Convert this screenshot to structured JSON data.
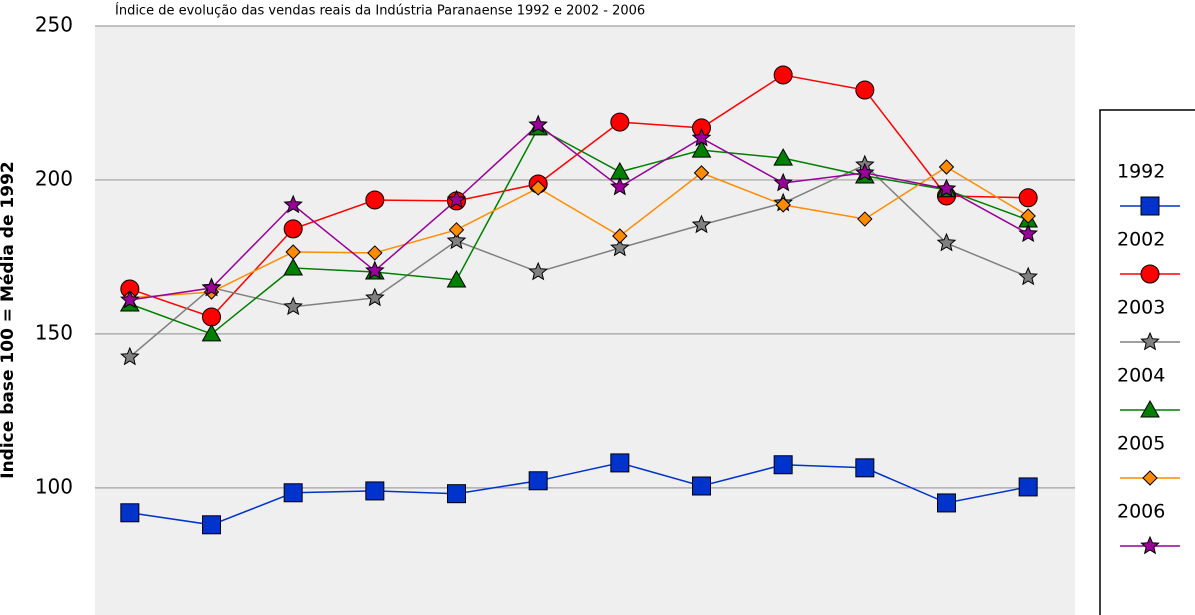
{
  "chart_data": {
    "type": "line",
    "title": "Índice de evolução das vendas reais da Indústria Paranaense 1992 e 2002 - 2006",
    "y_label": "Índice base 100 = Média de 1992",
    "categories": [
      null,
      null,
      null,
      null,
      null,
      null,
      null,
      null,
      null,
      null,
      null,
      null
    ],
    "ylim": [
      60,
      250
    ],
    "yticks": [
      100,
      150,
      200,
      250
    ],
    "grid": true,
    "legend": "right",
    "series": [
      {
        "name": "1992",
        "color": "#0033cc",
        "marker": "square",
        "values": [
          91.9,
          88.0,
          98.4,
          99.0,
          98.1,
          102.3,
          108.1,
          100.6,
          107.5,
          106.5,
          95.1,
          100.3
        ]
      },
      {
        "name": "2002",
        "color": "#ff0000",
        "marker": "circle",
        "values": [
          164.6,
          155.5,
          184.1,
          193.5,
          193.2,
          198.7,
          218.8,
          216.9,
          234.1,
          229.2,
          194.8,
          194.2
        ]
      },
      {
        "name": "2003",
        "color": "#808080",
        "marker": "star",
        "values": [
          142.5,
          165.0,
          158.8,
          161.7,
          180.2,
          170.1,
          177.9,
          185.4,
          192.5,
          204.9,
          179.5,
          168.5
        ]
      },
      {
        "name": "2004",
        "color": "#008000",
        "marker": "triangle",
        "values": [
          159.7,
          150.0,
          171.4,
          170.1,
          167.5,
          216.9,
          202.6,
          209.7,
          207.1,
          201.3,
          196.8,
          187.0
        ]
      },
      {
        "name": "2005",
        "color": "#ff8c00",
        "marker": "diamond",
        "values": [
          161.7,
          163.6,
          176.6,
          176.3,
          183.8,
          197.4,
          181.8,
          202.3,
          191.9,
          187.3,
          204.2,
          188.3
        ]
      },
      {
        "name": "2006",
        "color": "#990099",
        "marker": "star",
        "values": [
          161.0,
          164.9,
          191.9,
          170.5,
          193.5,
          217.9,
          197.7,
          213.6,
          199.0,
          202.3,
          197.1,
          182.5
        ]
      }
    ]
  }
}
